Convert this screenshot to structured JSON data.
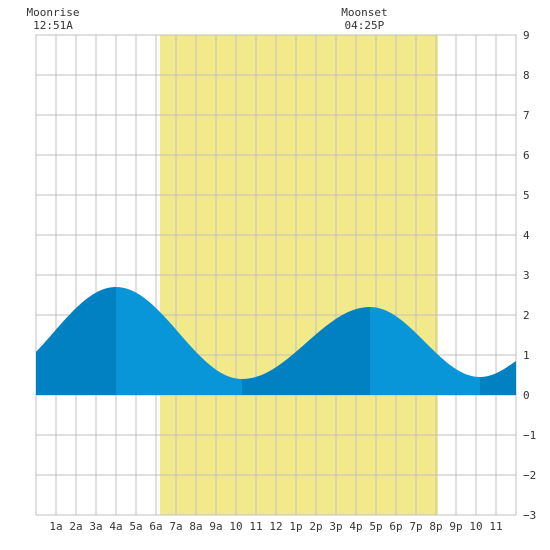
{
  "chart_data": {
    "type": "area",
    "title": "",
    "xlabel": "",
    "ylabel": "",
    "xlim": [
      0,
      24
    ],
    "ylim": [
      -3,
      9
    ],
    "grid": true,
    "y_ticks": [
      -3,
      -2,
      -1,
      0,
      1,
      2,
      3,
      4,
      5,
      6,
      7,
      8,
      9
    ],
    "x_tick_labels": [
      "1a",
      "2a",
      "3a",
      "4a",
      "5a",
      "6a",
      "7a",
      "8a",
      "9a",
      "10",
      "11",
      "12",
      "1p",
      "2p",
      "3p",
      "4p",
      "5p",
      "6p",
      "7p",
      "8p",
      "9p",
      "10",
      "11"
    ],
    "daylight": {
      "start": 6.2,
      "end": 20.1
    },
    "moonrise": {
      "label": "Moonrise",
      "time": "12:51A",
      "x": 0.85
    },
    "moonset": {
      "label": "Moonset",
      "time": "04:25P",
      "x": 16.42
    },
    "tide": {
      "extrema": [
        {
          "x": 4.0,
          "y": 2.7
        },
        {
          "x": 10.3,
          "y": 0.4
        },
        {
          "x": 16.7,
          "y": 2.2
        },
        {
          "x": 22.2,
          "y": 0.45
        }
      ],
      "start_y": 1.35,
      "end_y": 0.85
    },
    "colors": {
      "background": "#ffffff",
      "daylight": "#f2ea8a",
      "grid": "#c0c0c0",
      "tide_rising": "#0281c2",
      "tide_falling": "#0896d8",
      "axis_text": "#333333"
    }
  }
}
